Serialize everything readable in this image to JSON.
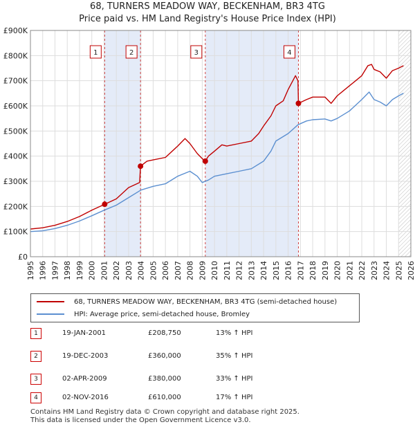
{
  "title": "68, TURNERS MEADOW WAY, BECKENHAM, BR3 4TG",
  "subtitle": "Price paid vs. HM Land Registry's House Price Index (HPI)",
  "colors": {
    "property": "#c00000",
    "hpi": "#5b8fd0",
    "shade": "#e4ebf8",
    "grid": "#dddddd"
  },
  "legend": {
    "property": "68, TURNERS MEADOW WAY, BECKENHAM, BR3 4TG (semi-detached house)",
    "hpi": "HPI: Average price, semi-detached house, Bromley"
  },
  "transactions": [
    {
      "n": "1",
      "date": "19-JAN-2001",
      "price": "£208,750",
      "delta": "13% ↑ HPI"
    },
    {
      "n": "2",
      "date": "19-DEC-2003",
      "price": "£360,000",
      "delta": "35% ↑ HPI"
    },
    {
      "n": "3",
      "date": "02-APR-2009",
      "price": "£380,000",
      "delta": "33% ↑ HPI"
    },
    {
      "n": "4",
      "date": "02-NOV-2016",
      "price": "£610,000",
      "delta": "17% ↑ HPI"
    }
  ],
  "footer": {
    "line1": "Contains HM Land Registry data © Crown copyright and database right 2025.",
    "line2": "This data is licensed under the Open Government Licence v3.0."
  },
  "chart_data": {
    "type": "line",
    "title": "68, TURNERS MEADOW WAY, BECKENHAM, BR3 4TG",
    "subtitle": "Price paid vs. HM Land Registry's House Price Index (HPI)",
    "xlim": [
      1995,
      2026
    ],
    "ylim": [
      0,
      900000
    ],
    "x_ticks": [
      "1995",
      "1996",
      "1997",
      "1998",
      "1999",
      "2000",
      "2001",
      "2002",
      "2003",
      "2004",
      "2005",
      "2006",
      "2007",
      "2008",
      "2009",
      "2010",
      "2011",
      "2012",
      "2013",
      "2014",
      "2015",
      "2016",
      "2017",
      "2018",
      "2019",
      "2020",
      "2021",
      "2022",
      "2023",
      "2024",
      "2025",
      "2026"
    ],
    "y_ticks": [
      {
        "value": 0,
        "label": "£0"
      },
      {
        "value": 100000,
        "label": "£100K"
      },
      {
        "value": 200000,
        "label": "£200K"
      },
      {
        "value": 300000,
        "label": "£300K"
      },
      {
        "value": 400000,
        "label": "£400K"
      },
      {
        "value": 500000,
        "label": "£500K"
      },
      {
        "value": 600000,
        "label": "£600K"
      },
      {
        "value": 700000,
        "label": "£700K"
      },
      {
        "value": 800000,
        "label": "£800K"
      },
      {
        "value": 900000,
        "label": "£900K"
      }
    ],
    "shaded_ranges": [
      [
        2001.05,
        2003.97
      ],
      [
        2009.25,
        2016.84
      ]
    ],
    "hatched_from": 2025.0,
    "markers": [
      {
        "label": "1",
        "x": 2001.05,
        "y": 208750
      },
      {
        "label": "2",
        "x": 2003.97,
        "y": 360000
      },
      {
        "label": "3",
        "x": 2009.25,
        "y": 380000
      },
      {
        "label": "4",
        "x": 2016.84,
        "y": 610000
      }
    ],
    "series": [
      {
        "name": "68, TURNERS MEADOW WAY, BECKENHAM, BR3 4TG (semi-detached house)",
        "color": "#c00000",
        "x": [
          1995.0,
          1996.0,
          1997.0,
          1998.0,
          1999.0,
          2000.0,
          2001.05,
          2002.0,
          2003.0,
          2003.9,
          2003.97,
          2004.5,
          2005.0,
          2006.0,
          2007.0,
          2007.6,
          2008.0,
          2008.6,
          2009.0,
          2009.25,
          2009.5,
          2010.0,
          2010.6,
          2011.0,
          2012.0,
          2013.0,
          2013.6,
          2014.0,
          2014.6,
          2015.0,
          2015.6,
          2016.0,
          2016.6,
          2016.8,
          2016.84,
          2017.5,
          2018.0,
          2019.0,
          2019.5,
          2020.0,
          2020.5,
          2021.0,
          2021.5,
          2022.0,
          2022.5,
          2022.8,
          2023.0,
          2023.5,
          2024.0,
          2024.5,
          2025.0,
          2025.4
        ],
        "y": [
          110000,
          115000,
          125000,
          140000,
          160000,
          185000,
          208750,
          230000,
          275000,
          295000,
          360000,
          380000,
          385000,
          395000,
          440000,
          470000,
          450000,
          410000,
          390000,
          380000,
          400000,
          420000,
          445000,
          440000,
          450000,
          460000,
          490000,
          520000,
          560000,
          600000,
          620000,
          665000,
          720000,
          700000,
          610000,
          625000,
          635000,
          635000,
          610000,
          640000,
          660000,
          680000,
          700000,
          720000,
          760000,
          765000,
          745000,
          735000,
          710000,
          740000,
          750000,
          760000
        ]
      },
      {
        "name": "HPI: Average price, semi-detached house, Bromley",
        "color": "#5b8fd0",
        "x": [
          1995.0,
          1996.0,
          1997.0,
          1998.0,
          1999.0,
          2000.0,
          2001.0,
          2002.0,
          2003.0,
          2004.0,
          2005.0,
          2006.0,
          2007.0,
          2008.0,
          2008.6,
          2009.0,
          2009.5,
          2010.0,
          2011.0,
          2012.0,
          2013.0,
          2014.0,
          2014.6,
          2015.0,
          2016.0,
          2016.8,
          2017.5,
          2018.0,
          2019.0,
          2019.5,
          2020.0,
          2021.0,
          2022.0,
          2022.6,
          2023.0,
          2023.5,
          2024.0,
          2024.5,
          2025.0,
          2025.4
        ],
        "y": [
          100000,
          103000,
          112000,
          125000,
          142000,
          163000,
          185000,
          205000,
          235000,
          265000,
          280000,
          290000,
          320000,
          340000,
          320000,
          295000,
          305000,
          320000,
          330000,
          340000,
          350000,
          380000,
          420000,
          460000,
          490000,
          525000,
          540000,
          545000,
          548000,
          540000,
          550000,
          580000,
          625000,
          655000,
          625000,
          615000,
          600000,
          625000,
          640000,
          650000
        ]
      }
    ]
  }
}
